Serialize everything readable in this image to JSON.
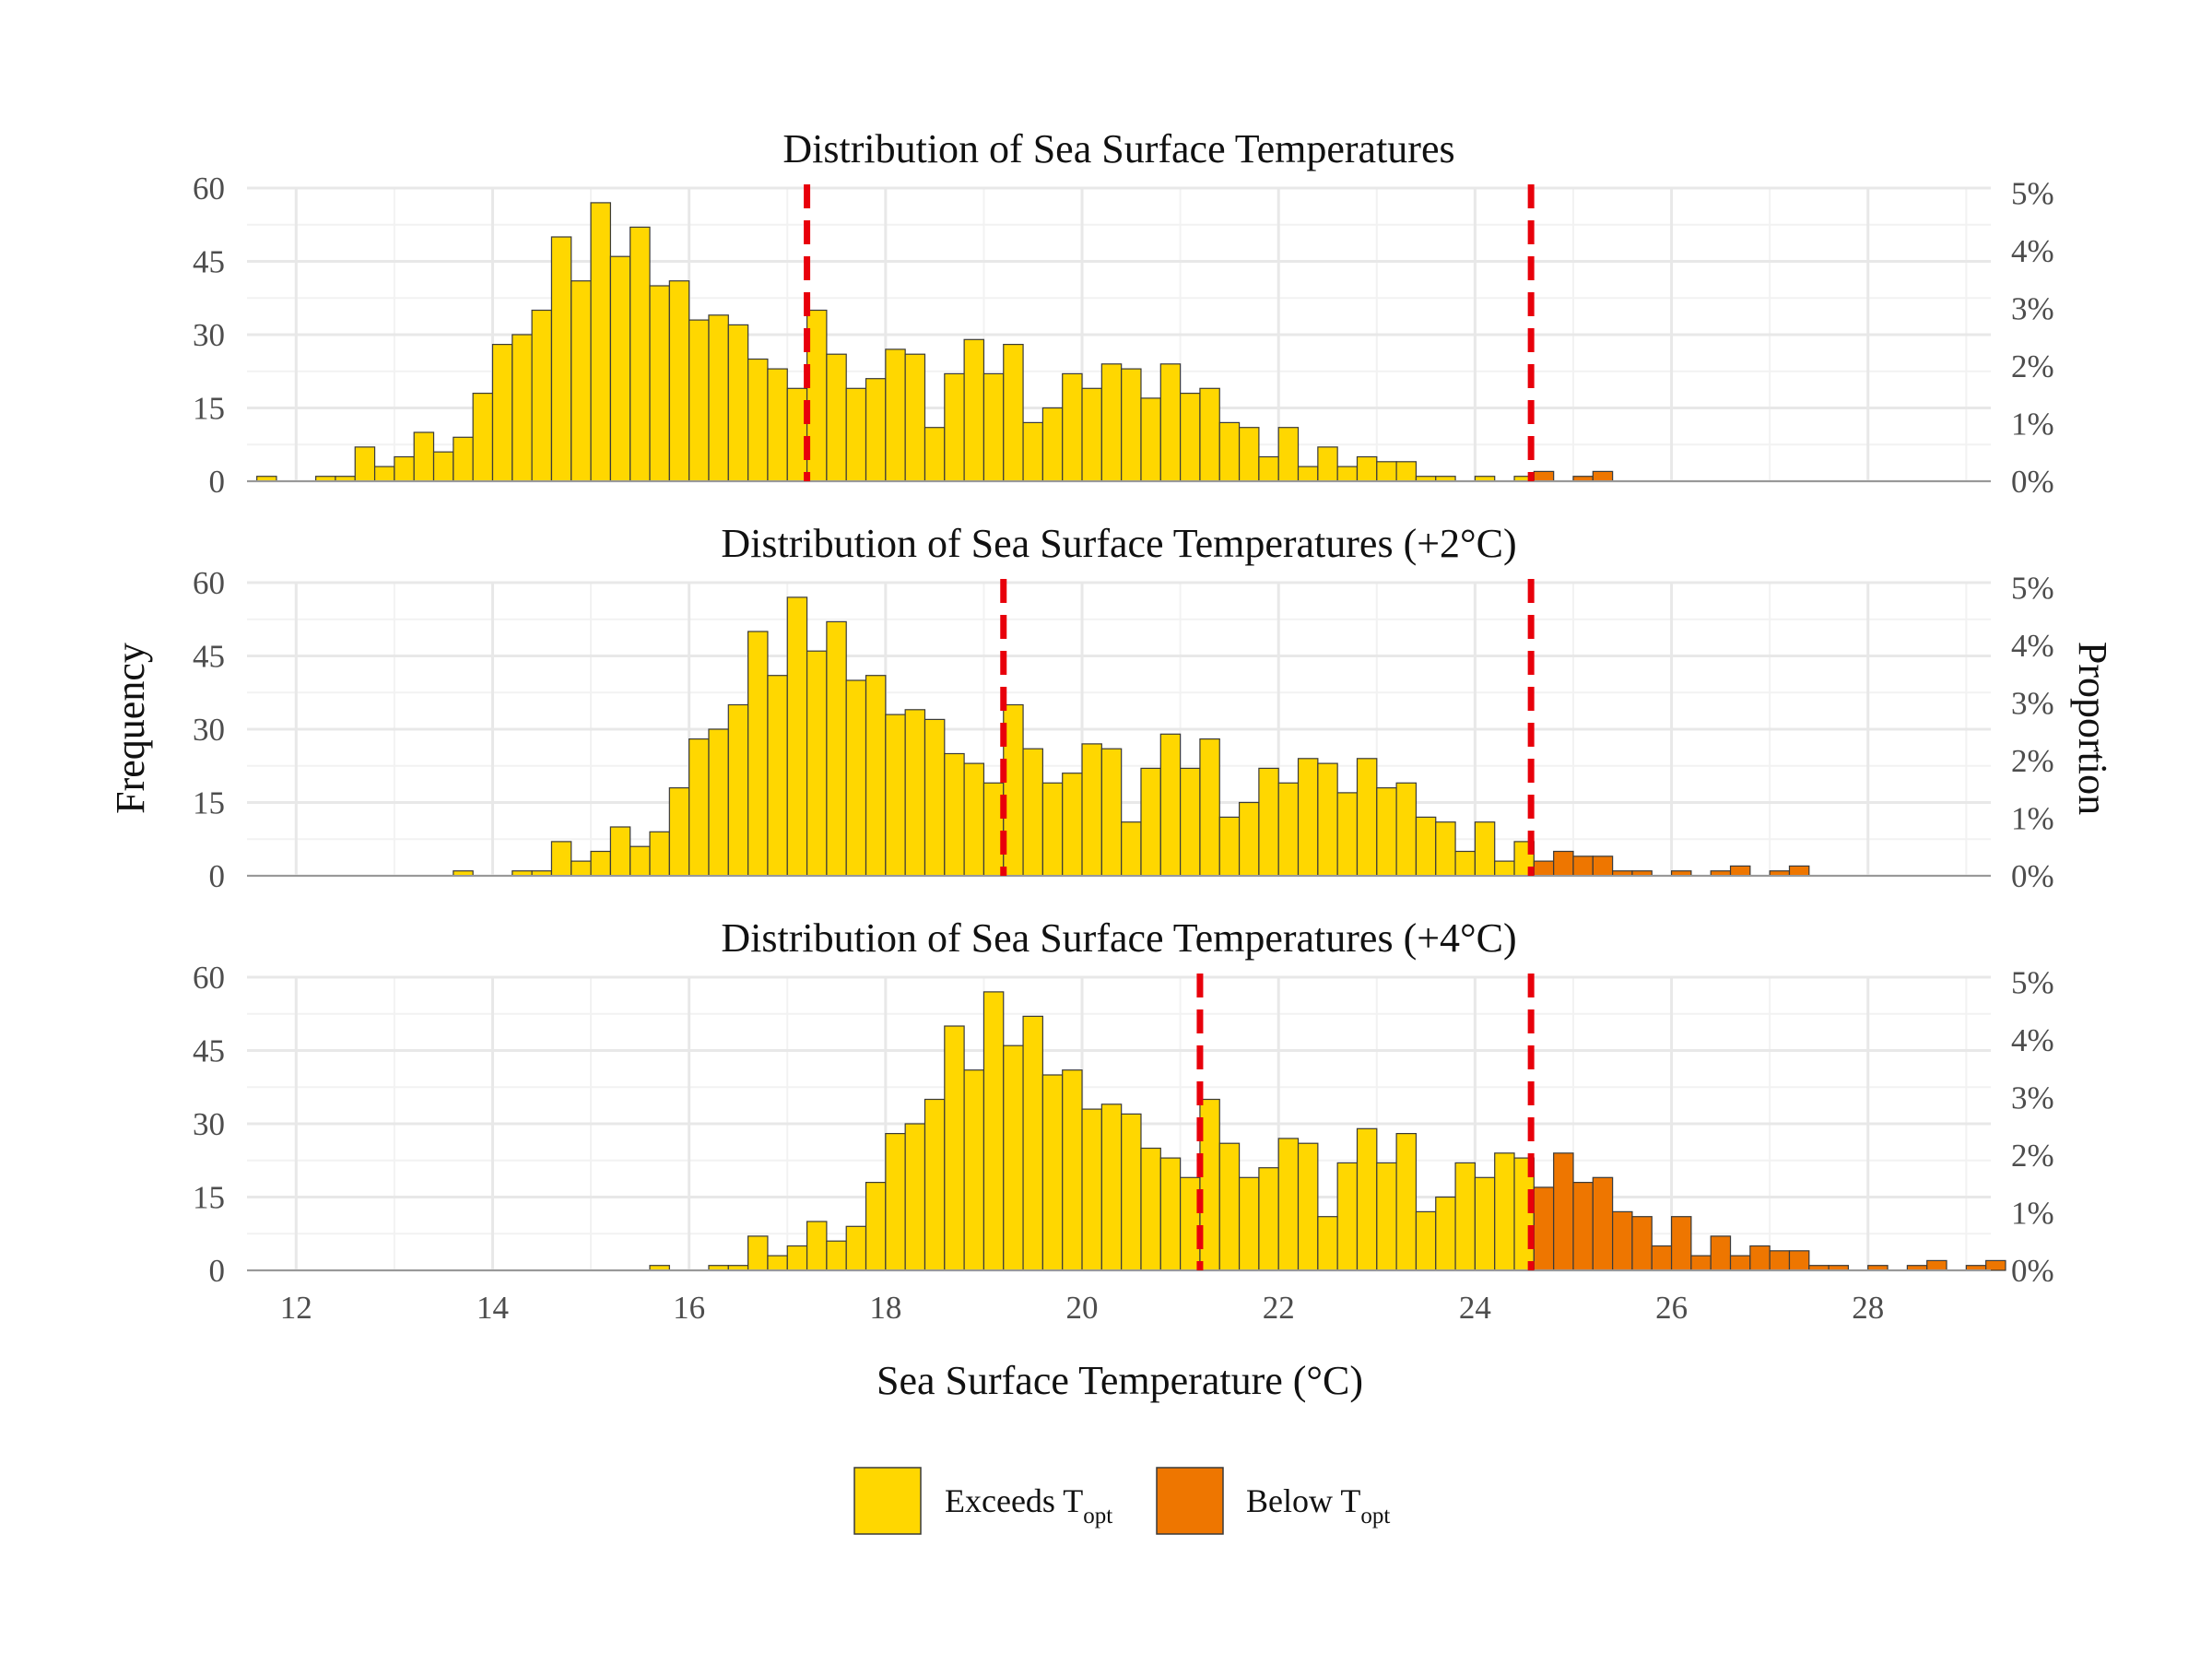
{
  "chart_data": {
    "type": "bar",
    "panels": [
      {
        "title": "Distribution of Sea Surface Temperatures",
        "shift": 0,
        "mean_line": 17.2,
        "topt_line": 24.57,
        "bins": [
          [
            11.6,
            1
          ],
          [
            12.2,
            1
          ],
          [
            12.4,
            1
          ],
          [
            12.6,
            7
          ],
          [
            12.8,
            3
          ],
          [
            13.0,
            5
          ],
          [
            13.2,
            10
          ],
          [
            13.4,
            6
          ],
          [
            13.6,
            9
          ],
          [
            13.8,
            18
          ],
          [
            14.0,
            28
          ],
          [
            14.2,
            30
          ],
          [
            14.4,
            35
          ],
          [
            14.6,
            50
          ],
          [
            14.8,
            41
          ],
          [
            15.0,
            57
          ],
          [
            15.2,
            46
          ],
          [
            15.4,
            52
          ],
          [
            15.6,
            40
          ],
          [
            15.8,
            41
          ],
          [
            16.0,
            33
          ],
          [
            16.2,
            34
          ],
          [
            16.4,
            32
          ],
          [
            16.6,
            25
          ],
          [
            16.8,
            23
          ],
          [
            17.0,
            19
          ],
          [
            17.2,
            35
          ],
          [
            17.4,
            26
          ],
          [
            17.6,
            19
          ],
          [
            17.8,
            21
          ],
          [
            18.0,
            27
          ],
          [
            18.2,
            26
          ],
          [
            18.4,
            11
          ],
          [
            18.6,
            22
          ],
          [
            18.8,
            29
          ],
          [
            19.0,
            22
          ],
          [
            19.2,
            28
          ],
          [
            19.4,
            12
          ],
          [
            19.6,
            15
          ],
          [
            19.8,
            22
          ],
          [
            20.0,
            19
          ],
          [
            20.2,
            24
          ],
          [
            20.4,
            23
          ],
          [
            20.6,
            17
          ],
          [
            20.8,
            24
          ],
          [
            21.0,
            18
          ],
          [
            21.2,
            19
          ],
          [
            21.4,
            12
          ],
          [
            21.6,
            11
          ],
          [
            21.8,
            5
          ],
          [
            22.0,
            11
          ],
          [
            22.2,
            3
          ],
          [
            22.4,
            7
          ],
          [
            22.6,
            3
          ],
          [
            22.8,
            5
          ],
          [
            23.0,
            4
          ],
          [
            23.2,
            4
          ],
          [
            23.4,
            1
          ],
          [
            23.6,
            1
          ],
          [
            24.0,
            1
          ],
          [
            24.4,
            1
          ],
          [
            24.6,
            2
          ],
          [
            25.0,
            1
          ],
          [
            25.2,
            2
          ]
        ]
      },
      {
        "title": "Distribution of Sea Surface Temperatures (+2°C)",
        "shift": 2,
        "mean_line": 19.2,
        "topt_line": 24.57,
        "bins": [
          [
            13.6,
            1
          ],
          [
            14.2,
            1
          ],
          [
            14.4,
            1
          ],
          [
            14.6,
            7
          ],
          [
            14.8,
            3
          ],
          [
            15.0,
            5
          ],
          [
            15.2,
            10
          ],
          [
            15.4,
            6
          ],
          [
            15.6,
            9
          ],
          [
            15.8,
            18
          ],
          [
            16.0,
            28
          ],
          [
            16.2,
            30
          ],
          [
            16.4,
            35
          ],
          [
            16.6,
            50
          ],
          [
            16.8,
            41
          ],
          [
            17.0,
            57
          ],
          [
            17.2,
            46
          ],
          [
            17.4,
            52
          ],
          [
            17.6,
            40
          ],
          [
            17.8,
            41
          ],
          [
            18.0,
            33
          ],
          [
            18.2,
            34
          ],
          [
            18.4,
            32
          ],
          [
            18.6,
            25
          ],
          [
            18.8,
            23
          ],
          [
            19.0,
            19
          ],
          [
            19.2,
            35
          ],
          [
            19.4,
            26
          ],
          [
            19.6,
            19
          ],
          [
            19.8,
            21
          ],
          [
            20.0,
            27
          ],
          [
            20.2,
            26
          ],
          [
            20.4,
            11
          ],
          [
            20.6,
            22
          ],
          [
            20.8,
            29
          ],
          [
            21.0,
            22
          ],
          [
            21.2,
            28
          ],
          [
            21.4,
            12
          ],
          [
            21.6,
            15
          ],
          [
            21.8,
            22
          ],
          [
            22.0,
            19
          ],
          [
            22.2,
            24
          ],
          [
            22.4,
            23
          ],
          [
            22.6,
            17
          ],
          [
            22.8,
            24
          ],
          [
            23.0,
            18
          ],
          [
            23.2,
            19
          ],
          [
            23.4,
            12
          ],
          [
            23.6,
            11
          ],
          [
            23.8,
            5
          ],
          [
            24.0,
            11
          ],
          [
            24.2,
            3
          ],
          [
            24.4,
            7
          ],
          [
            24.6,
            3
          ],
          [
            24.8,
            5
          ],
          [
            25.0,
            4
          ],
          [
            25.2,
            4
          ],
          [
            25.4,
            1
          ],
          [
            25.6,
            1
          ],
          [
            26.0,
            1
          ],
          [
            26.4,
            1
          ],
          [
            26.6,
            2
          ],
          [
            27.0,
            1
          ],
          [
            27.2,
            2
          ]
        ]
      },
      {
        "title": "Distribution of Sea Surface Temperatures (+4°C)",
        "shift": 4,
        "mean_line": 21.2,
        "topt_line": 24.57,
        "bins": [
          [
            15.6,
            1
          ],
          [
            16.2,
            1
          ],
          [
            16.4,
            1
          ],
          [
            16.6,
            7
          ],
          [
            16.8,
            3
          ],
          [
            17.0,
            5
          ],
          [
            17.2,
            10
          ],
          [
            17.4,
            6
          ],
          [
            17.6,
            9
          ],
          [
            17.8,
            18
          ],
          [
            18.0,
            28
          ],
          [
            18.2,
            30
          ],
          [
            18.4,
            35
          ],
          [
            18.6,
            50
          ],
          [
            18.8,
            41
          ],
          [
            19.0,
            57
          ],
          [
            19.2,
            46
          ],
          [
            19.4,
            52
          ],
          [
            19.6,
            40
          ],
          [
            19.8,
            41
          ],
          [
            20.0,
            33
          ],
          [
            20.2,
            34
          ],
          [
            20.4,
            32
          ],
          [
            20.6,
            25
          ],
          [
            20.8,
            23
          ],
          [
            21.0,
            19
          ],
          [
            21.2,
            35
          ],
          [
            21.4,
            26
          ],
          [
            21.6,
            19
          ],
          [
            21.8,
            21
          ],
          [
            22.0,
            27
          ],
          [
            22.2,
            26
          ],
          [
            22.4,
            11
          ],
          [
            22.6,
            22
          ],
          [
            22.8,
            29
          ],
          [
            23.0,
            22
          ],
          [
            23.2,
            28
          ],
          [
            23.4,
            12
          ],
          [
            23.6,
            15
          ],
          [
            23.8,
            22
          ],
          [
            24.0,
            19
          ],
          [
            24.2,
            24
          ],
          [
            24.4,
            23
          ],
          [
            24.6,
            17
          ],
          [
            24.8,
            24
          ],
          [
            25.0,
            18
          ],
          [
            25.2,
            19
          ],
          [
            25.4,
            12
          ],
          [
            25.6,
            11
          ],
          [
            25.8,
            5
          ],
          [
            26.0,
            11
          ],
          [
            26.2,
            3
          ],
          [
            26.4,
            7
          ],
          [
            26.6,
            3
          ],
          [
            26.8,
            5
          ],
          [
            27.0,
            4
          ],
          [
            27.2,
            4
          ],
          [
            27.4,
            1
          ],
          [
            27.6,
            1
          ],
          [
            28.0,
            1
          ],
          [
            28.4,
            1
          ],
          [
            28.6,
            2
          ],
          [
            29.0,
            1
          ],
          [
            29.2,
            2
          ]
        ]
      }
    ],
    "bin_width": 0.2,
    "xlabel": "Sea Surface Temperature (°C)",
    "ylabel": "Frequency",
    "ylabel_right": "Proportion",
    "xlim": [
      11.5,
      29.25
    ],
    "ylim": [
      0,
      60
    ],
    "xticks": [
      "12",
      "14",
      "16",
      "18",
      "20",
      "22",
      "24",
      "26",
      "28"
    ],
    "yticks": [
      "0",
      "15",
      "30",
      "45",
      "60"
    ],
    "yticks_right": [
      "0%",
      "1%",
      "2%",
      "3%",
      "4%",
      "5%"
    ],
    "right_axis_max_percent": 5,
    "legend": {
      "position": "bottom",
      "items": [
        {
          "label": "Exceeds T",
          "sub": "opt",
          "color": "#FFD700"
        },
        {
          "label": "Below T",
          "sub": "opt",
          "color": "#EE7600"
        }
      ]
    },
    "line_color": "#E8000B",
    "grid": true
  }
}
